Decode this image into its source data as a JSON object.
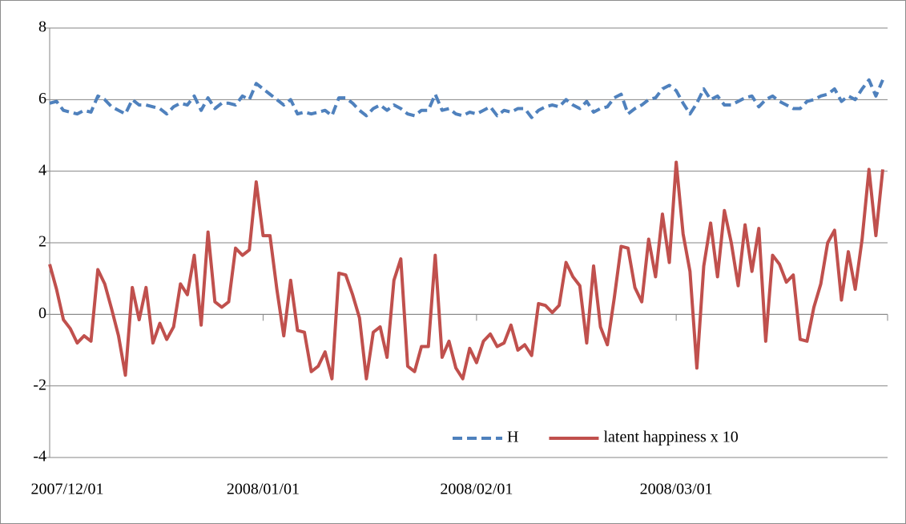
{
  "chart_data": {
    "type": "line",
    "categories": [
      "2007/12/01",
      null,
      null,
      null,
      null,
      null,
      null,
      null,
      null,
      null,
      null,
      null,
      null,
      null,
      null,
      null,
      null,
      null,
      null,
      null,
      null,
      null,
      null,
      null,
      null,
      null,
      null,
      null,
      null,
      null,
      null,
      "2008/01/01",
      null,
      null,
      null,
      null,
      null,
      null,
      null,
      null,
      null,
      null,
      null,
      null,
      null,
      null,
      null,
      null,
      null,
      null,
      null,
      null,
      null,
      null,
      null,
      null,
      null,
      null,
      null,
      null,
      null,
      null,
      "2008/02/01",
      null,
      null,
      null,
      null,
      null,
      null,
      null,
      null,
      null,
      null,
      null,
      null,
      null,
      null,
      null,
      null,
      null,
      null,
      null,
      null,
      null,
      null,
      null,
      null,
      null,
      null,
      null,
      null,
      "2008/03/01",
      null,
      null,
      null,
      null,
      null,
      null,
      null,
      null,
      null,
      null,
      null,
      null,
      null,
      null,
      null,
      null,
      null,
      null,
      null,
      null,
      null,
      null,
      null,
      null,
      null,
      null,
      null,
      null,
      null,
      null
    ],
    "series": [
      {
        "name": "H",
        "color": "#4f81bd",
        "dashed": true,
        "values": [
          5.9,
          5.95,
          5.7,
          5.65,
          5.6,
          5.7,
          5.65,
          6.1,
          6.0,
          5.8,
          5.7,
          5.6,
          6.0,
          5.85,
          5.85,
          5.8,
          5.75,
          5.6,
          5.8,
          5.9,
          5.85,
          6.1,
          5.7,
          6.05,
          5.75,
          5.9,
          5.9,
          5.85,
          6.1,
          6.0,
          6.45,
          6.3,
          6.15,
          6.0,
          5.85,
          6.0,
          5.6,
          5.65,
          5.6,
          5.65,
          5.7,
          5.55,
          6.05,
          6.05,
          5.9,
          5.7,
          5.55,
          5.75,
          5.85,
          5.7,
          5.85,
          5.75,
          5.6,
          5.55,
          5.7,
          5.7,
          6.15,
          5.7,
          5.75,
          5.6,
          5.55,
          5.65,
          5.6,
          5.7,
          5.8,
          5.55,
          5.7,
          5.65,
          5.75,
          5.75,
          5.5,
          5.7,
          5.8,
          5.85,
          5.8,
          6.0,
          5.85,
          5.75,
          5.95,
          5.65,
          5.75,
          5.8,
          6.05,
          6.15,
          5.6,
          5.75,
          5.85,
          6.0,
          6.05,
          6.3,
          6.4,
          6.25,
          5.9,
          5.6,
          5.9,
          6.3,
          6.0,
          6.1,
          5.85,
          5.85,
          5.95,
          6.05,
          6.1,
          5.8,
          6.0,
          6.1,
          5.95,
          5.85,
          5.75,
          5.75,
          5.95,
          6.0,
          6.1,
          6.15,
          6.3,
          5.95,
          6.1,
          6.0,
          6.3,
          6.55,
          6.1,
          6.55
        ]
      },
      {
        "name": "latent happiness x 10",
        "color": "#c0504d",
        "dashed": false,
        "values": [
          1.4,
          0.7,
          -0.15,
          -0.4,
          -0.8,
          -0.6,
          -0.75,
          1.25,
          0.85,
          0.15,
          -0.6,
          -1.7,
          0.75,
          -0.15,
          0.75,
          -0.8,
          -0.25,
          -0.7,
          -0.35,
          0.85,
          0.55,
          1.65,
          -0.3,
          2.3,
          0.35,
          0.2,
          0.35,
          1.85,
          1.65,
          1.8,
          3.7,
          2.2,
          2.2,
          0.7,
          -0.6,
          0.95,
          -0.45,
          -0.5,
          -1.6,
          -1.45,
          -1.05,
          -1.8,
          1.15,
          1.1,
          0.55,
          -0.1,
          -1.8,
          -0.5,
          -0.35,
          -1.2,
          0.95,
          1.55,
          -1.45,
          -1.6,
          -0.9,
          -0.9,
          1.65,
          -1.2,
          -0.75,
          -1.5,
          -1.8,
          -0.95,
          -1.35,
          -0.75,
          -0.55,
          -0.9,
          -0.8,
          -0.3,
          -1.0,
          -0.85,
          -1.15,
          0.3,
          0.25,
          0.05,
          0.25,
          1.45,
          1.05,
          0.8,
          -0.8,
          1.35,
          -0.35,
          -0.85,
          0.45,
          1.9,
          1.85,
          0.75,
          0.35,
          2.1,
          1.05,
          2.8,
          1.45,
          4.25,
          2.25,
          1.2,
          -1.5,
          1.35,
          2.55,
          1.05,
          2.9,
          2.0,
          0.8,
          2.5,
          1.2,
          2.4,
          -0.75,
          1.65,
          1.4,
          0.9,
          1.1,
          -0.7,
          -0.75,
          0.2,
          0.85,
          2.0,
          2.35,
          0.4,
          1.75,
          0.7,
          2.1,
          4.05,
          2.2,
          4.05
        ]
      }
    ],
    "ylim": [
      -4,
      8
    ],
    "yticks": [
      -4,
      -2,
      0,
      2,
      4,
      6,
      8
    ],
    "grid": true,
    "legend": "lower right"
  }
}
